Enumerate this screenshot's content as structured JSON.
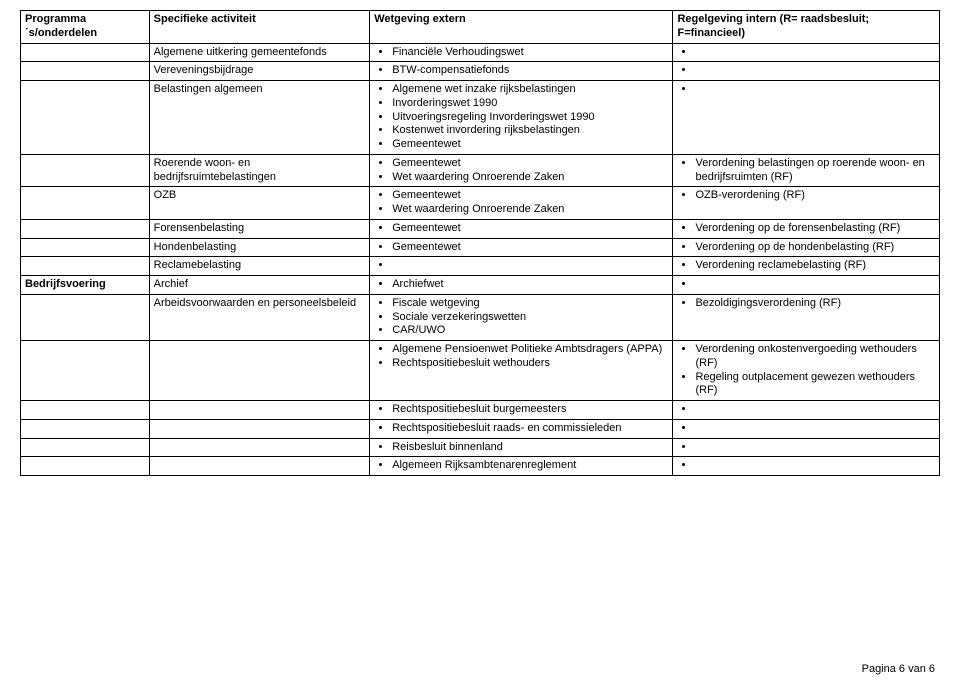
{
  "columns": {
    "c0": "Programma´s/onderdelen",
    "c1": "Specifieke activiteit",
    "c2": "Wetgeving extern",
    "c3": "Regelgeving intern\n(R= raadsbesluit; F=financieel)"
  },
  "rows": [
    {
      "c0": "",
      "c1": "Algemene uitkering gemeentefonds",
      "c2": [
        "Financiële Verhoudingswet"
      ],
      "c3": [
        ""
      ]
    },
    {
      "c0": "",
      "c1": "Vereveningsbijdrage",
      "c2": [
        "BTW-compensatiefonds"
      ],
      "c3": [
        ""
      ]
    },
    {
      "c0": "",
      "c1": "Belastingen algemeen",
      "c2": [
        "Algemene wet inzake rijksbelastingen",
        "Invorderingswet 1990",
        "Uitvoeringsregeling Invorderingswet 1990",
        "Kostenwet invordering rijksbelastingen",
        "Gemeentewet"
      ],
      "c3": [
        ""
      ]
    },
    {
      "c0": "",
      "c1": "Roerende woon- en bedrijfsruimtebelastingen",
      "c2": [
        "Gemeentewet",
        "Wet waardering Onroerende Zaken"
      ],
      "c3": [
        "Verordening belastingen op roerende woon- en bedrijfsruimten (RF)"
      ]
    },
    {
      "c0": "",
      "c1": "OZB",
      "c2": [
        "Gemeentewet",
        "Wet waardering Onroerende Zaken"
      ],
      "c3": [
        "OZB-verordening (RF)"
      ]
    },
    {
      "c0": "",
      "c1": "Forensenbelasting",
      "c2": [
        "Gemeentewet"
      ],
      "c3": [
        "Verordening op de forensenbelasting (RF)"
      ]
    },
    {
      "c0": "",
      "c1": "Hondenbelasting",
      "c2": [
        "Gemeentewet"
      ],
      "c3": [
        "Verordening op de hondenbelasting (RF)"
      ]
    },
    {
      "c0": "",
      "c1": "Reclamebelasting",
      "c2": [
        ""
      ],
      "c3": [
        "Verordening reclamebelasting (RF)"
      ]
    },
    {
      "c0": "Bedrijfsvoering",
      "c1": "Archief",
      "c2": [
        "Archiefwet"
      ],
      "c3": [
        ""
      ]
    },
    {
      "c0": "",
      "c1": "Arbeidsvoorwaarden en personeelsbeleid",
      "c2": [
        "Fiscale wetgeving",
        "Sociale verzekeringswetten",
        "CAR/UWO"
      ],
      "c3": [
        "Bezoldigingsverordening (RF)"
      ]
    },
    {
      "c0": "",
      "c1": "",
      "c2": [
        "Algemene Pensioenwet Politieke Ambtsdragers (APPA)",
        "Rechtspositiebesluit wethouders"
      ],
      "c3": [
        "Verordening onkostenvergoeding wethouders (RF)",
        "Regeling outplacement gewezen wethouders (RF)"
      ]
    },
    {
      "c0": "",
      "c1": "",
      "c2": [
        "Rechtspositiebesluit burgemeesters"
      ],
      "c3": [
        ""
      ]
    },
    {
      "c0": "",
      "c1": "",
      "c2": [
        "Rechtspositiebesluit raads- en commissieleden"
      ],
      "c3": [
        ""
      ]
    },
    {
      "c0": "",
      "c1": "",
      "c2": [
        "Reisbesluit binnenland"
      ],
      "c3": [
        ""
      ]
    },
    {
      "c0": "",
      "c1": "",
      "c2": [
        "Algemeen Rijksambtenarenreglement"
      ],
      "c3": [
        ""
      ]
    }
  ],
  "footer": "Pagina 6 van 6"
}
